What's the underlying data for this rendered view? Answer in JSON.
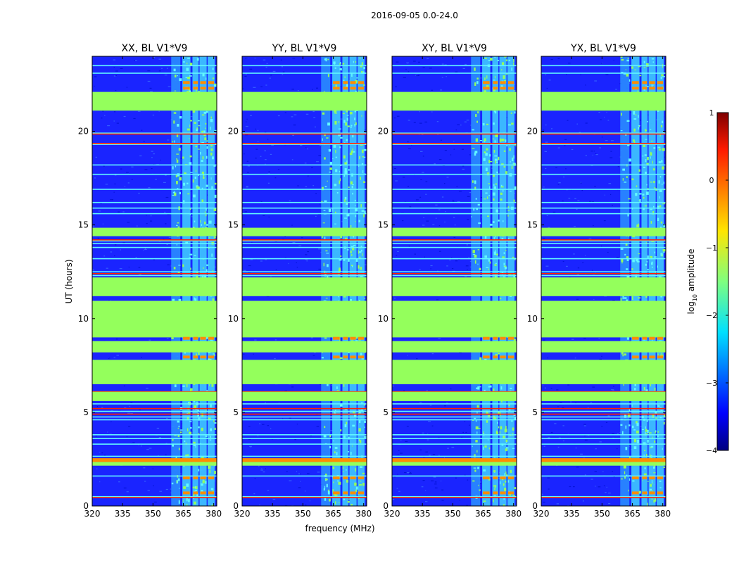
{
  "figure_title": "2016-09-05 0.0-24.0",
  "colors": {
    "blank": "#94ff5c",
    "noise_dark": "#1a24ff",
    "noise_mid": "#3a6cff",
    "speckle": "#62f7ff",
    "hot": "#ff8c00",
    "red_line": "#ff2000"
  },
  "chart_data": {
    "type": "heatmap",
    "shared": {
      "xlabel": "frequency (MHz)",
      "ylabel": "UT (hours)",
      "xlim": [
        320,
        381.5
      ],
      "ylim": [
        0,
        24
      ],
      "xticks": [
        320,
        335,
        350,
        365,
        380
      ],
      "xtick_labels": [
        "320",
        "335",
        "350",
        "365",
        "380"
      ],
      "yticks": [
        0,
        5,
        10,
        15,
        20
      ],
      "ytick_labels": [
        "0",
        "5",
        "10",
        "15",
        "20"
      ],
      "rfi_bands_mhz": [
        [
          359,
          363.5
        ],
        [
          364.5,
          368.5
        ],
        [
          369.5,
          372.5
        ],
        [
          373,
          376.5
        ],
        [
          377,
          380.5
        ]
      ],
      "blank_time_ranges_h": [
        [
          21.1,
          22.1
        ],
        [
          14.4,
          14.85
        ],
        [
          11.2,
          12.2
        ],
        [
          9.0,
          10.95
        ],
        [
          8.2,
          8.8
        ],
        [
          6.5,
          7.8
        ],
        [
          5.6,
          6.1
        ],
        [
          2.15,
          2.35
        ]
      ],
      "rfi_line_times_h": [
        23.5,
        23.1,
        19.9,
        19.3,
        18.2,
        17.7,
        16.9,
        16.2,
        15.9,
        15.6,
        14.15,
        14.0,
        13.8,
        13.2,
        12.5,
        12.3,
        8.7,
        5.45,
        5.05,
        4.75,
        4.6,
        3.8,
        3.6,
        3.3,
        2.65,
        1.6,
        0.5
      ],
      "red_line_times_h": [
        2.45,
        2.5,
        5.2,
        4.9,
        14.5,
        14.2,
        19.85,
        19.35,
        12.4,
        6.1,
        0.45
      ],
      "hot_spot_times_h": [
        22.6,
        22.3,
        8.95,
        7.95,
        1.5,
        0.7
      ]
    },
    "panels": [
      {
        "title": "XX, BL V1*V9",
        "baseline": "V1*V9",
        "polarization": "XX"
      },
      {
        "title": "YY, BL V1*V9",
        "baseline": "V1*V9",
        "polarization": "YY"
      },
      {
        "title": "XY, BL V1*V9",
        "baseline": "V1*V9",
        "polarization": "XY"
      },
      {
        "title": "YX, BL V1*V9",
        "baseline": "V1*V9",
        "polarization": "YX"
      }
    ],
    "colorbar": {
      "label": "log",
      "label_subscript": "10",
      "label_suffix": " amplitude",
      "range": [
        -4,
        1
      ],
      "ticks": [
        1,
        0,
        -1,
        -2,
        -3,
        -4
      ],
      "tick_labels": [
        "1",
        "0",
        "−1",
        "−2",
        "−3",
        "−4"
      ],
      "colormap": "jet"
    }
  }
}
